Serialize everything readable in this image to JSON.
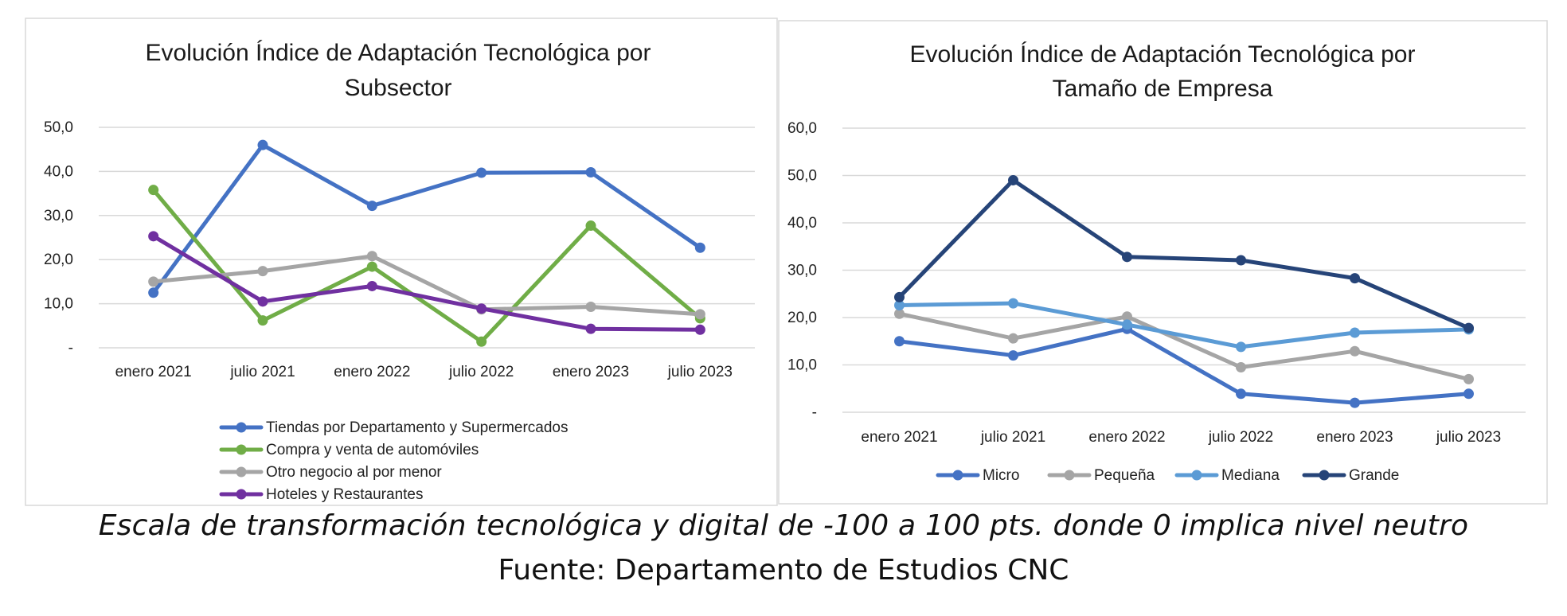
{
  "chart_data": [
    {
      "type": "line",
      "title_lines": [
        "Evolución Índice de Adaptación Tecnológica por",
        "Subsector"
      ],
      "categories": [
        "enero 2021",
        "julio 2021",
        "enero 2022",
        "julio 2022",
        "enero 2023",
        "julio 2023"
      ],
      "ylim": [
        0,
        50
      ],
      "yticks": [
        0,
        10,
        20,
        30,
        40,
        50
      ],
      "ytick_labels": [
        "-",
        "10,0",
        "20,0",
        "30,0",
        "40,0",
        "50,0"
      ],
      "grid": true,
      "legend_position": "bottom",
      "series": [
        {
          "name": "Tiendas por Departamento y Supermercados",
          "color": "#4472C4",
          "values": [
            12.5,
            46.0,
            32.2,
            39.7,
            39.8,
            22.7
          ]
        },
        {
          "name": "Compra y venta de automóviles",
          "color": "#70AD47",
          "values": [
            35.8,
            6.2,
            18.4,
            1.4,
            27.7,
            6.7
          ]
        },
        {
          "name": "Otro negocio al por menor",
          "color": "#A5A5A5",
          "values": [
            15.0,
            17.4,
            20.8,
            8.7,
            9.3,
            7.6
          ]
        },
        {
          "name": "Hoteles y Restaurantes",
          "color": "#7030A0",
          "values": [
            25.3,
            10.5,
            14.0,
            8.9,
            4.3,
            4.1
          ]
        }
      ]
    },
    {
      "type": "line",
      "title_lines": [
        "Evolución Índice de Adaptación Tecnológica por",
        "Tamaño de Empresa"
      ],
      "categories": [
        "enero 2021",
        "julio 2021",
        "enero 2022",
        "julio 2022",
        "enero 2023",
        "julio 2023"
      ],
      "ylim": [
        0,
        60
      ],
      "yticks": [
        0,
        10,
        20,
        30,
        40,
        50,
        60
      ],
      "ytick_labels": [
        "-",
        "10,0",
        "20,0",
        "30,0",
        "40,0",
        "50,0",
        "60,0"
      ],
      "grid": true,
      "legend_position": "bottom",
      "series": [
        {
          "name": "Micro",
          "color": "#4472C4",
          "values": [
            15.0,
            12.0,
            17.6,
            3.9,
            2.0,
            3.9
          ]
        },
        {
          "name": "Pequeña",
          "color": "#A5A5A5",
          "values": [
            20.8,
            15.6,
            20.2,
            9.5,
            12.9,
            7.0
          ]
        },
        {
          "name": "Mediana",
          "color": "#5B9BD5",
          "values": [
            22.6,
            23.0,
            18.5,
            13.8,
            16.8,
            17.5
          ]
        },
        {
          "name": "Grande",
          "color": "#264478",
          "values": [
            24.3,
            49.0,
            32.8,
            32.1,
            28.3,
            17.8
          ]
        }
      ]
    }
  ],
  "footer": {
    "scale_note": "Escala de transformación tecnológica y digital de -100 a 100 pts. donde 0 implica nivel neutro",
    "source": "Fuente: Departamento de Estudios CNC"
  }
}
